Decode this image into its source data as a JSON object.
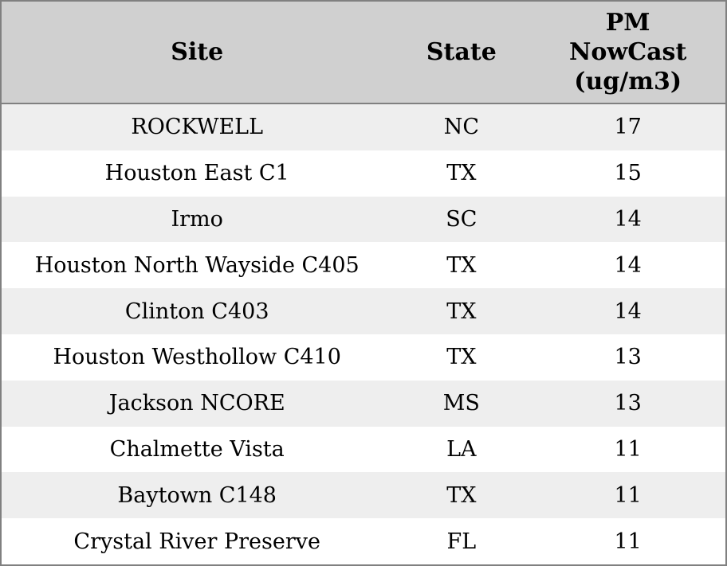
{
  "colors": {
    "border": "#808080",
    "header_bg": "#d0d0d0",
    "row_stripe_bg": "#eeeeee",
    "row_plain_bg": "#ffffff",
    "text": "#000000"
  },
  "table": {
    "columns": [
      {
        "key": "site",
        "label": "Site"
      },
      {
        "key": "state",
        "label": "State"
      },
      {
        "key": "pm",
        "label": "PM\nNowCast\n(ug/m3)"
      }
    ],
    "rows": [
      {
        "site": "ROCKWELL",
        "state": "NC",
        "pm": "17"
      },
      {
        "site": "Houston East C1",
        "state": "TX",
        "pm": "15"
      },
      {
        "site": "Irmo",
        "state": "SC",
        "pm": "14"
      },
      {
        "site": "Houston North Wayside C405",
        "state": "TX",
        "pm": "14"
      },
      {
        "site": "Clinton C403",
        "state": "TX",
        "pm": "14"
      },
      {
        "site": "Houston Westhollow C410",
        "state": "TX",
        "pm": "13"
      },
      {
        "site": "Jackson NCORE",
        "state": "MS",
        "pm": "13"
      },
      {
        "site": "Chalmette Vista",
        "state": "LA",
        "pm": "11"
      },
      {
        "site": "Baytown C148",
        "state": "TX",
        "pm": "11"
      },
      {
        "site": "Crystal River Preserve",
        "state": "FL",
        "pm": "11"
      }
    ]
  },
  "chart_data": {
    "type": "table",
    "title": "",
    "columns": [
      "Site",
      "State",
      "PM NowCast (ug/m3)"
    ],
    "categories": [
      "ROCKWELL",
      "Houston East C1",
      "Irmo",
      "Houston North Wayside C405",
      "Clinton C403",
      "Houston Westhollow C410",
      "Jackson NCORE",
      "Chalmette Vista",
      "Baytown C148",
      "Crystal River Preserve"
    ],
    "series": [
      {
        "name": "State",
        "values": [
          "NC",
          "TX",
          "SC",
          "TX",
          "TX",
          "TX",
          "MS",
          "LA",
          "TX",
          "FL"
        ]
      },
      {
        "name": "PM NowCast (ug/m3)",
        "values": [
          17,
          15,
          14,
          14,
          14,
          13,
          13,
          11,
          11,
          11
        ]
      }
    ],
    "layout": {
      "striped_rows": true,
      "header_shaded": true,
      "grid": false
    }
  }
}
